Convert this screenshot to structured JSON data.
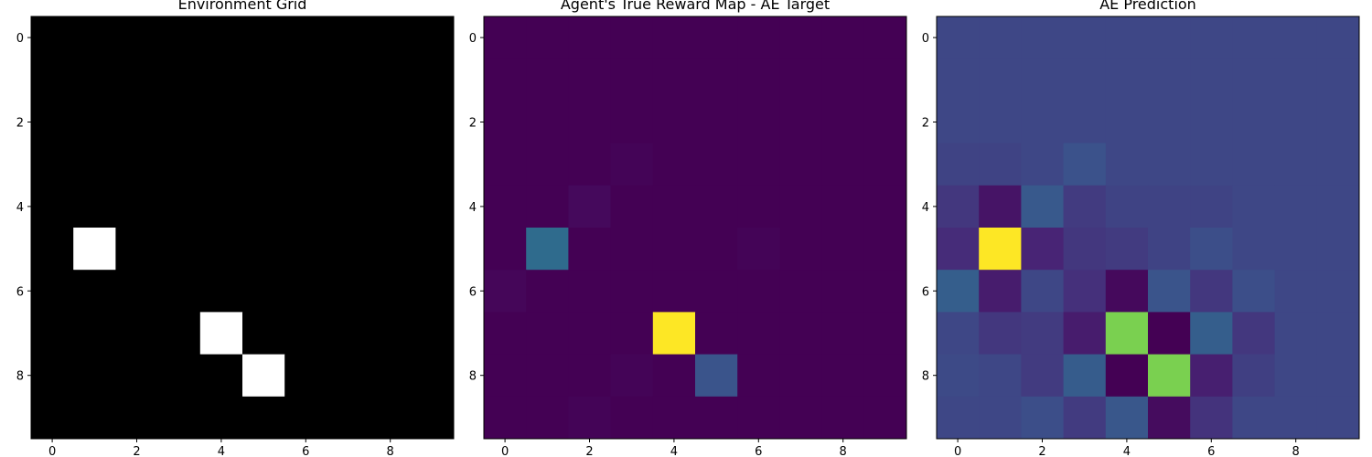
{
  "figure": {
    "background": "#ffffff"
  },
  "chart_data": [
    {
      "type": "heatmap",
      "title": "Environment Grid",
      "colormap": "gray",
      "value_range": [
        0,
        1
      ],
      "rows": 10,
      "cols": 10,
      "xticks": [
        0,
        2,
        4,
        6,
        8
      ],
      "yticks": [
        0,
        2,
        4,
        6,
        8
      ],
      "xlim": [
        -0.5,
        9.5
      ],
      "ylim": [
        9.5,
        -0.5
      ],
      "values": [
        [
          0,
          0,
          0,
          0,
          0,
          0,
          0,
          0,
          0,
          0
        ],
        [
          0,
          0,
          0,
          0,
          0,
          0,
          0,
          0,
          0,
          0
        ],
        [
          0,
          0,
          0,
          0,
          0,
          0,
          0,
          0,
          0,
          0
        ],
        [
          0,
          0,
          0,
          0,
          0,
          0,
          0,
          0,
          0,
          0
        ],
        [
          0,
          0,
          0,
          0,
          0,
          0,
          0,
          0,
          0,
          0
        ],
        [
          0,
          1,
          0,
          0,
          0,
          0,
          0,
          0,
          0,
          0
        ],
        [
          0,
          0,
          0,
          0,
          0,
          0,
          0,
          0,
          0,
          0
        ],
        [
          0,
          0,
          0,
          0,
          1,
          0,
          0,
          0,
          0,
          0
        ],
        [
          0,
          0,
          0,
          0,
          0,
          1,
          0,
          0,
          0,
          0
        ],
        [
          0,
          0,
          0,
          0,
          0,
          0,
          0,
          0,
          0,
          0
        ]
      ]
    },
    {
      "type": "heatmap",
      "title": "Agent's True Reward Map - AE Target",
      "colormap": "viridis",
      "value_range": [
        0,
        1
      ],
      "rows": 10,
      "cols": 10,
      "xticks": [
        0,
        2,
        4,
        6,
        8
      ],
      "yticks": [
        0,
        2,
        4,
        6,
        8
      ],
      "xlim": [
        -0.5,
        9.5
      ],
      "ylim": [
        9.5,
        -0.5
      ],
      "values": [
        [
          0,
          0,
          0,
          0,
          0,
          0,
          0,
          0,
          0,
          0
        ],
        [
          0,
          0,
          0,
          0,
          0,
          0,
          0,
          0,
          0,
          0
        ],
        [
          0,
          0,
          0,
          0,
          0,
          0,
          0,
          0,
          0,
          0
        ],
        [
          0,
          0,
          0,
          0.01,
          0,
          0,
          0,
          0,
          0,
          0
        ],
        [
          0,
          0,
          0.03,
          0,
          0,
          0,
          0,
          0,
          0,
          0
        ],
        [
          0,
          0.35,
          0,
          0,
          0,
          0,
          0.01,
          0,
          0,
          0
        ],
        [
          0.02,
          0,
          0,
          0,
          0,
          0,
          0,
          0,
          0,
          0
        ],
        [
          0,
          0,
          0,
          0,
          1,
          0,
          0,
          0,
          0,
          0
        ],
        [
          0,
          0,
          0,
          0.01,
          0,
          0.26,
          0,
          0,
          0,
          0
        ],
        [
          0,
          0,
          0.01,
          0,
          0,
          0,
          0,
          0,
          0,
          0
        ]
      ]
    },
    {
      "type": "heatmap",
      "title": "AE Prediction",
      "colormap": "viridis",
      "value_range": [
        0,
        1
      ],
      "rows": 10,
      "cols": 10,
      "xticks": [
        0,
        2,
        4,
        6,
        8
      ],
      "yticks": [
        0,
        2,
        4,
        6,
        8
      ],
      "xlim": [
        -0.5,
        9.5
      ],
      "ylim": [
        9.5,
        -0.5
      ],
      "values": [
        [
          0.22,
          0.22,
          0.22,
          0.22,
          0.22,
          0.22,
          0.22,
          0.22,
          0.22,
          0.22
        ],
        [
          0.22,
          0.22,
          0.22,
          0.22,
          0.22,
          0.22,
          0.22,
          0.22,
          0.22,
          0.22
        ],
        [
          0.22,
          0.22,
          0.22,
          0.22,
          0.22,
          0.22,
          0.22,
          0.22,
          0.22,
          0.22
        ],
        [
          0.21,
          0.21,
          0.22,
          0.25,
          0.22,
          0.22,
          0.22,
          0.22,
          0.22,
          0.22
        ],
        [
          0.18,
          0.07,
          0.28,
          0.19,
          0.21,
          0.21,
          0.21,
          0.22,
          0.22,
          0.22
        ],
        [
          0.15,
          1.0,
          0.13,
          0.18,
          0.19,
          0.21,
          0.24,
          0.22,
          0.22,
          0.22
        ],
        [
          0.3,
          0.1,
          0.22,
          0.16,
          0.03,
          0.26,
          0.18,
          0.24,
          0.22,
          0.22
        ],
        [
          0.22,
          0.18,
          0.19,
          0.1,
          0.8,
          0.0,
          0.3,
          0.18,
          0.22,
          0.22
        ],
        [
          0.23,
          0.22,
          0.19,
          0.29,
          0.0,
          0.8,
          0.11,
          0.2,
          0.22,
          0.22
        ],
        [
          0.22,
          0.22,
          0.24,
          0.19,
          0.27,
          0.04,
          0.17,
          0.22,
          0.22,
          0.22
        ]
      ]
    }
  ]
}
